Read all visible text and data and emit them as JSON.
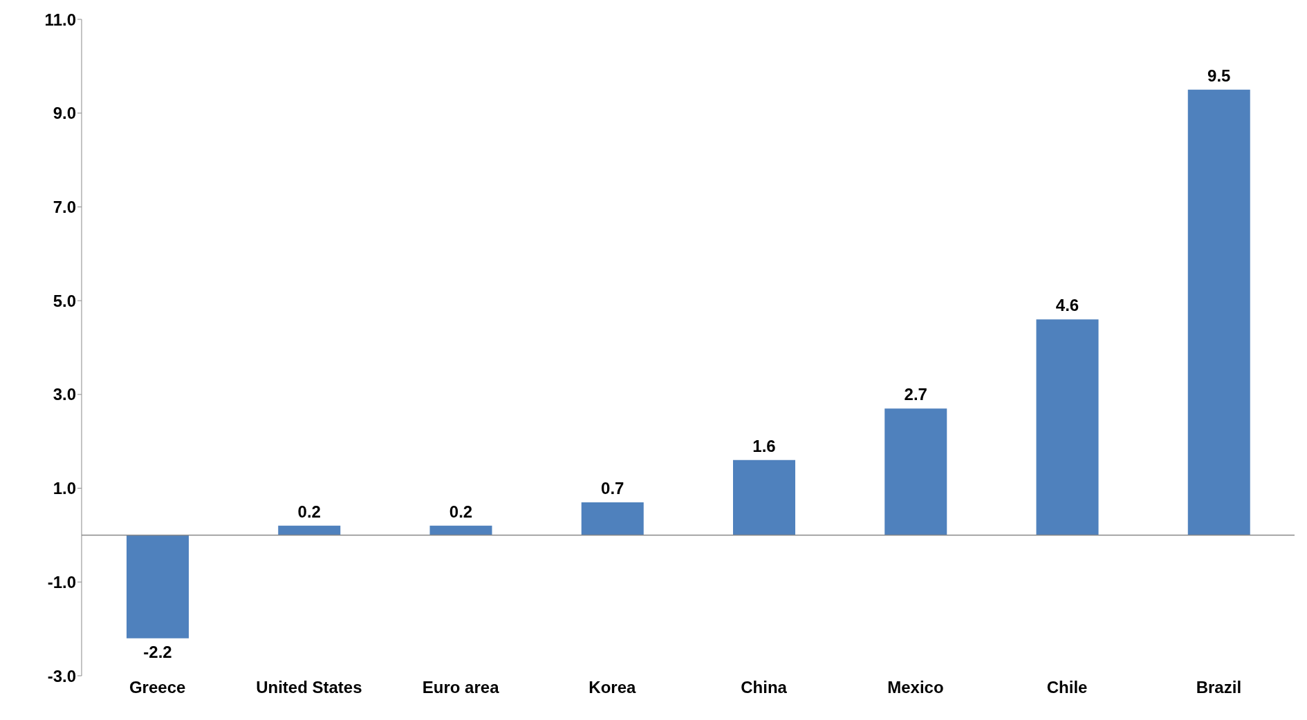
{
  "chart_data": {
    "type": "bar",
    "categories": [
      "Greece",
      "United States",
      "Euro area",
      "Korea",
      "China",
      "Mexico",
      "Chile",
      "Brazil"
    ],
    "values": [
      -2.2,
      0.2,
      0.2,
      0.7,
      1.6,
      2.7,
      4.6,
      9.5
    ],
    "color": "#4f81bd",
    "data_labels": true,
    "grid": false,
    "legend": false,
    "ylim": [
      -3,
      11
    ],
    "yticks": [
      {
        "value": -3,
        "label": "-3.0"
      },
      {
        "value": -1,
        "label": "-1.0"
      },
      {
        "value": 1,
        "label": "1.0"
      },
      {
        "value": 3,
        "label": "3.0"
      },
      {
        "value": 5,
        "label": "5.0"
      },
      {
        "value": 7,
        "label": "7.0"
      },
      {
        "value": 9,
        "label": "9.0"
      },
      {
        "value": 11,
        "label": "11.0"
      }
    ]
  }
}
